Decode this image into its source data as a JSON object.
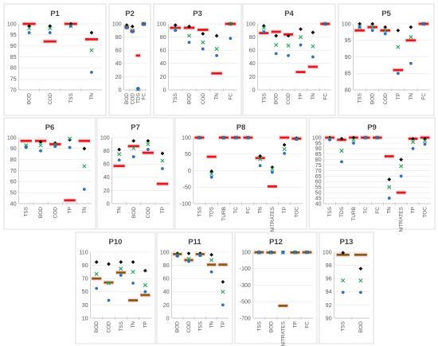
{
  "marker_colors": {
    "red": "#e31a1c",
    "brown": "#8c5a10",
    "pink": "#f7c6d0",
    "blue": "#2f6fc4",
    "green": "#26a65b",
    "black": "#111111"
  },
  "chart_data": [
    {
      "title": "P1",
      "type": "scatter",
      "categories": [
        "BOD",
        "COD",
        "TSS",
        "TN"
      ],
      "ylim": [
        70,
        100
      ],
      "yticks": [
        70,
        75,
        80,
        85,
        90,
        95,
        100
      ],
      "series": [
        {
          "marker": "diamond",
          "values": [
            99,
            99,
            100,
            96
          ]
        },
        {
          "marker": "x",
          "values": [
            98,
            98,
            99,
            88
          ]
        },
        {
          "marker": "dot",
          "values": [
            96,
            96,
            99,
            78
          ]
        },
        {
          "marker": "bar-red",
          "values": [
            100,
            92,
            100,
            93
          ]
        }
      ]
    },
    {
      "title": "P2",
      "type": "scatter",
      "categories": [
        "BOD",
        "COD",
        "TDS",
        "FC"
      ],
      "ylim": [
        0,
        100
      ],
      "yticks": [
        0,
        20,
        40,
        60,
        80,
        100
      ],
      "series": [
        {
          "marker": "diamond",
          "values": [
            98,
            96,
            2,
            100
          ]
        },
        {
          "marker": "x",
          "values": [
            95,
            90,
            1,
            100
          ]
        },
        {
          "marker": "dot",
          "values": [
            94,
            88,
            1,
            99
          ]
        },
        {
          "marker": "bar-red",
          "values": [
            95,
            89,
            52,
            100
          ]
        }
      ]
    },
    {
      "title": "P3",
      "type": "scatter",
      "categories": [
        "TSS",
        "BOD",
        "COD",
        "TN",
        "FC"
      ],
      "ylim": [
        0,
        100
      ],
      "yticks": [
        0,
        20,
        40,
        60,
        80,
        100
      ],
      "series": [
        {
          "marker": "diamond",
          "values": [
            98,
            96,
            85,
            82,
            100
          ]
        },
        {
          "marker": "x",
          "values": [
            92,
            82,
            72,
            62,
            100
          ]
        },
        {
          "marker": "dot",
          "values": [
            90,
            72,
            62,
            52,
            78
          ]
        },
        {
          "marker": "bar-red",
          "values": [
            94,
            94,
            91,
            25,
            100
          ]
        }
      ]
    },
    {
      "title": "P4",
      "type": "scatter",
      "categories": [
        "TSS",
        "BOD",
        "COD",
        "TP",
        "TN",
        "FC"
      ],
      "ylim": [
        0,
        100
      ],
      "yticks": [
        0,
        20,
        40,
        60,
        80,
        100
      ],
      "series": [
        {
          "marker": "diamond",
          "values": [
            97,
            82,
            82,
            92,
            87,
            100
          ]
        },
        {
          "marker": "x",
          "values": [
            94,
            68,
            67,
            80,
            66,
            100
          ]
        },
        {
          "marker": "dot",
          "values": [
            88,
            55,
            52,
            68,
            50,
            100
          ]
        },
        {
          "marker": "bar-red",
          "values": [
            86,
            88,
            84,
            27,
            35,
            100
          ]
        }
      ]
    },
    {
      "title": "P5",
      "type": "scatter",
      "categories": [
        "TSS",
        "BOD",
        "COD",
        "TP",
        "TN",
        "FC"
      ],
      "ylim": [
        80,
        100
      ],
      "yticks": [
        80,
        85,
        90,
        95,
        100
      ],
      "series": [
        {
          "marker": "diamond",
          "values": [
            100,
            100,
            99,
            98,
            99,
            100
          ]
        },
        {
          "marker": "x",
          "values": [
            99,
            99,
            98,
            93,
            96,
            100
          ]
        },
        {
          "marker": "dot",
          "values": [
            99,
            98,
            97,
            85,
            88,
            100
          ]
        },
        {
          "marker": "bar-red",
          "values": [
            98,
            99,
            98,
            86,
            95,
            100
          ]
        }
      ]
    },
    {
      "title": "P6",
      "type": "scatter",
      "categories": [
        "TSS",
        "BOD",
        "COD",
        "TP",
        "TN"
      ],
      "ylim": [
        40,
        100
      ],
      "yticks": [
        40,
        50,
        60,
        70,
        80,
        90,
        100
      ],
      "series": [
        {
          "marker": "diamond",
          "values": [
            92,
            96,
            95,
            98,
            90
          ]
        },
        {
          "marker": "x",
          "values": [
            93,
            93,
            94,
            99,
            74
          ]
        },
        {
          "marker": "dot",
          "values": [
            91,
            88,
            92,
            91,
            53
          ]
        },
        {
          "marker": "bar-red",
          "values": [
            97,
            97,
            94,
            43,
            97
          ]
        }
      ]
    },
    {
      "title": "P7",
      "type": "scatter",
      "categories": [
        "TN",
        "BOD",
        "COD",
        "TP"
      ],
      "ylim": [
        0,
        100
      ],
      "yticks": [
        0,
        20,
        40,
        60,
        80,
        100
      ],
      "series": [
        {
          "marker": "diamond",
          "values": [
            82,
            95,
            95,
            76
          ]
        },
        {
          "marker": "x",
          "values": [
            75,
            84,
            90,
            65
          ]
        },
        {
          "marker": "dot",
          "values": [
            66,
            71,
            82,
            53
          ]
        },
        {
          "marker": "bar-red",
          "values": [
            57,
            87,
            77,
            30
          ]
        }
      ]
    },
    {
      "title": "P8",
      "type": "scatter",
      "categories": [
        "TSS",
        "TDS",
        "TURB",
        "TC",
        "FC",
        "TN",
        "NITRATES",
        "TP",
        "TOC"
      ],
      "ylim": [
        -100,
        100
      ],
      "yticks": [
        -100,
        -50,
        0,
        50,
        100
      ],
      "series": [
        {
          "marker": "diamond",
          "values": [
            100,
            -2,
            100,
            100,
            100,
            44,
            10,
            78,
            98
          ]
        },
        {
          "marker": "x",
          "values": [
            100,
            -10,
            100,
            100,
            100,
            35,
            5,
            65,
            97
          ]
        },
        {
          "marker": "dot",
          "values": [
            100,
            -20,
            100,
            100,
            100,
            15,
            -5,
            52,
            95
          ]
        },
        {
          "marker": "bar-red",
          "values": [
            100,
            42,
            100,
            100,
            100,
            38,
            -48,
            100,
            97
          ]
        }
      ]
    },
    {
      "title": "P9",
      "type": "scatter",
      "categories": [
        "TSS",
        "TDS",
        "TURB",
        "TC",
        "FC",
        "TN",
        "NITRATES",
        "TP",
        "TOC"
      ],
      "ylim": [
        40,
        100
      ],
      "yticks": [
        40,
        45,
        50,
        55,
        60,
        65,
        70,
        75,
        80,
        85,
        90,
        95,
        100
      ],
      "series": [
        {
          "marker": "diamond",
          "values": [
            100,
            99,
            100,
            100,
            100,
            62,
            80,
            99,
            99
          ]
        },
        {
          "marker": "x",
          "values": [
            99,
            88,
            98,
            100,
            100,
            55,
            74,
            96,
            97
          ]
        },
        {
          "marker": "dot",
          "values": [
            98,
            78,
            95,
            100,
            100,
            45,
            65,
            90,
            94
          ]
        },
        {
          "marker": "bar-red",
          "values": [
            100,
            98,
            100,
            100,
            100,
            83,
            50,
            99,
            100
          ]
        }
      ]
    },
    {
      "title": "P10",
      "type": "scatter",
      "categories": [
        "BOD",
        "COD",
        "TSS",
        "TN",
        "TP"
      ],
      "ylim": [
        10,
        110
      ],
      "yticks": [
        10,
        30,
        50,
        70,
        90,
        110
      ],
      "series": [
        {
          "marker": "diamond",
          "values": [
            95,
            92,
            95,
            95,
            82
          ]
        },
        {
          "marker": "x",
          "values": [
            77,
            63,
            85,
            80,
            60
          ]
        },
        {
          "marker": "dot",
          "values": [
            55,
            37,
            75,
            63,
            50
          ]
        },
        {
          "marker": "bar-brown",
          "values": [
            70,
            64,
            79,
            37,
            45
          ]
        }
      ]
    },
    {
      "title": "P11",
      "type": "scatter",
      "categories": [
        "BOD",
        "COD",
        "TSS",
        "TN",
        "TP"
      ],
      "ylim": [
        0,
        100
      ],
      "yticks": [
        0,
        20,
        40,
        60,
        80,
        100
      ],
      "series": [
        {
          "marker": "diamond",
          "values": [
            98,
            98,
            98,
            96,
            55
          ]
        },
        {
          "marker": "x",
          "values": [
            96,
            90,
            96,
            88,
            40
          ]
        },
        {
          "marker": "dot",
          "values": [
            94,
            86,
            95,
            70,
            20
          ]
        },
        {
          "marker": "bar-brown",
          "values": [
            97,
            88,
            97,
            81,
            81
          ]
        }
      ]
    },
    {
      "title": "P12",
      "type": "scatter",
      "categories": [
        "TSS",
        "BOD",
        "NITRATES",
        "TP",
        "FC"
      ],
      "ylim": [
        -700,
        100
      ],
      "yticks": [
        -700,
        -500,
        -300,
        -100,
        100
      ],
      "series": [
        {
          "marker": "diamond",
          "values": [
            98,
            98,
            99,
            98,
            99
          ]
        },
        {
          "marker": "x",
          "values": [
            96,
            96,
            96,
            97,
            98
          ]
        },
        {
          "marker": "dot",
          "values": [
            94,
            94,
            95,
            95,
            97
          ]
        },
        {
          "marker": "bar-brown",
          "values": [
            98,
            96,
            -550,
            96,
            98
          ]
        }
      ]
    },
    {
      "title": "P13",
      "type": "scatter",
      "categories": [
        "TSS",
        "BOD"
      ],
      "ylim": [
        90,
        100
      ],
      "yticks": [
        90,
        92,
        94,
        96,
        98,
        100
      ],
      "series": [
        {
          "marker": "diamond",
          "values": [
            99.9,
            97.5
          ]
        },
        {
          "marker": "x",
          "values": [
            95.7,
            95.7
          ]
        },
        {
          "marker": "dot",
          "values": [
            93.9,
            93.9
          ]
        },
        {
          "marker": "bar-brown",
          "values": [
            99.6,
            99.6
          ]
        }
      ]
    }
  ]
}
